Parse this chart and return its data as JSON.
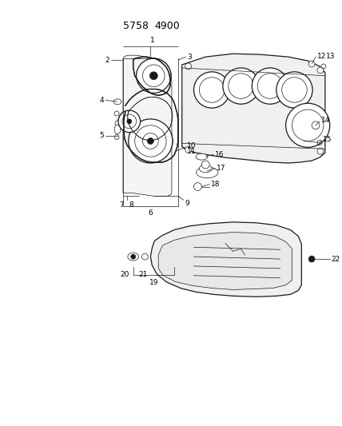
{
  "title": "5758  4900",
  "bg_color": "#ffffff",
  "line_color": "#1a1a1a",
  "label_color": "#000000",
  "lw_main": 0.9,
  "lw_thin": 0.5,
  "label_fontsize": 6.5,
  "title_fontsize": 9,
  "figsize": [
    4.28,
    5.33
  ],
  "dpi": 100
}
